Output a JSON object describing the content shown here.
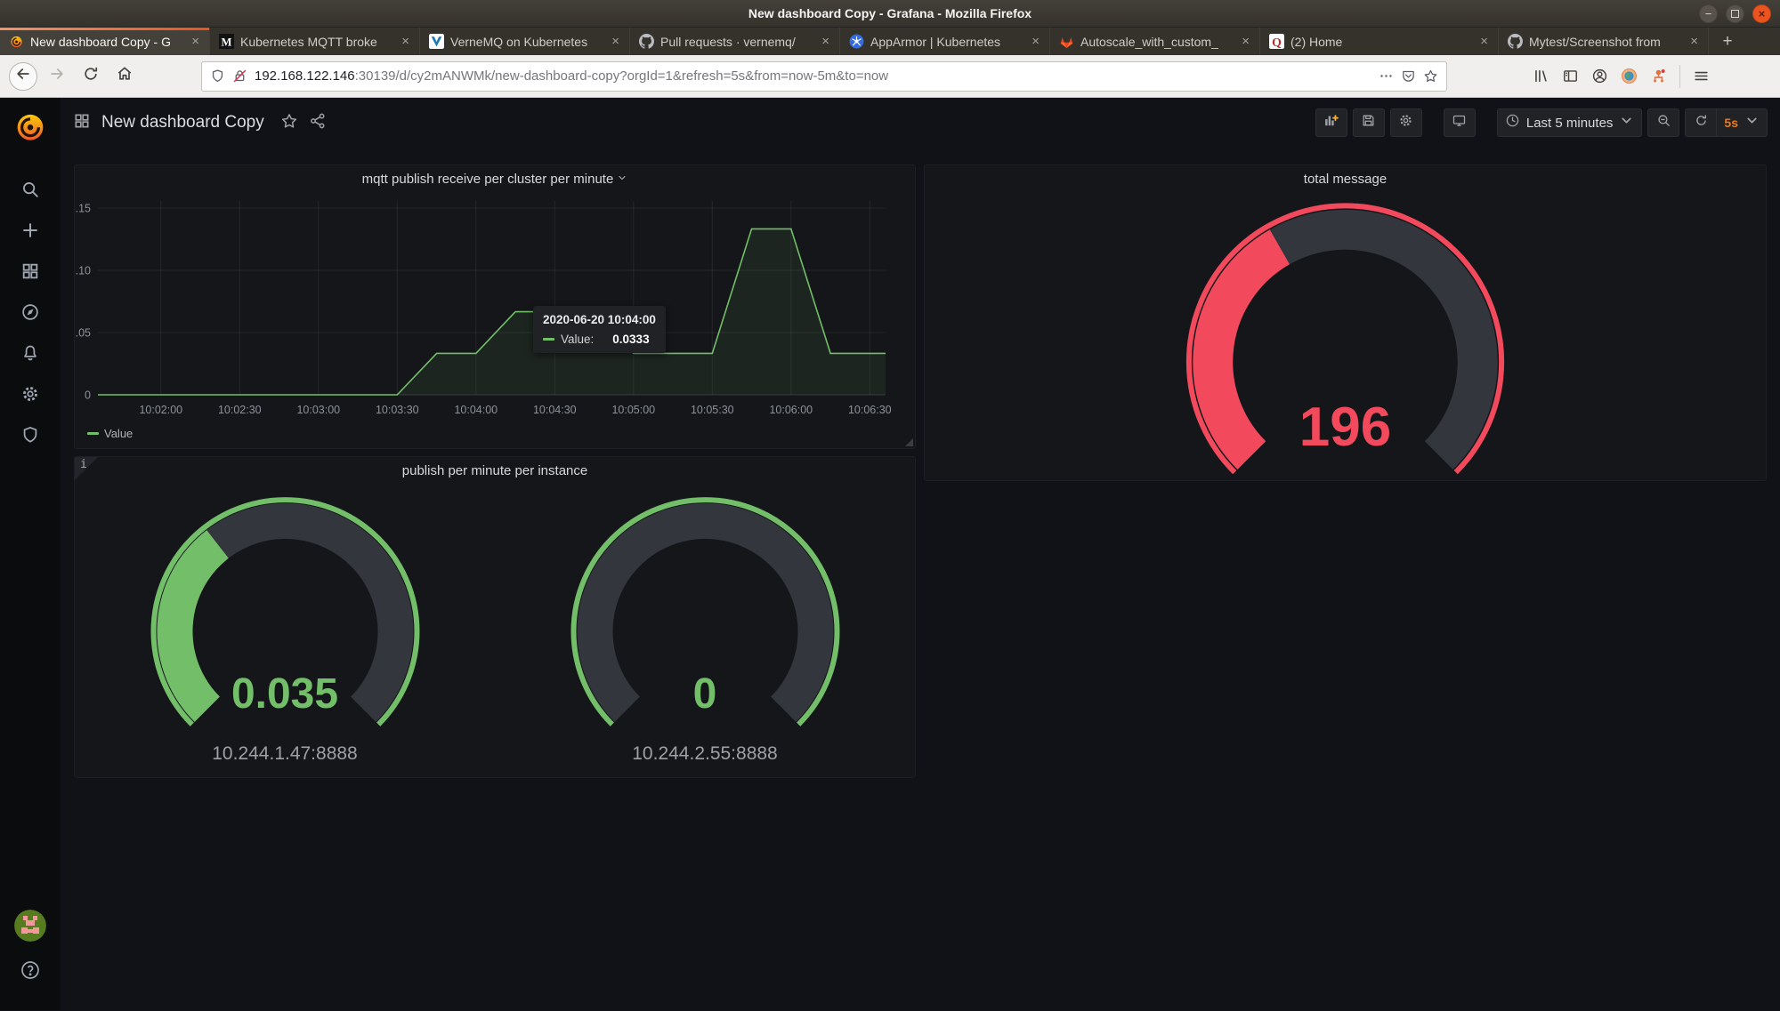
{
  "window": {
    "title": "New dashboard Copy - Grafana - Mozilla Firefox",
    "minimize_glyph": "−",
    "close_glyph": "×"
  },
  "browser": {
    "close_glyph": "×",
    "new_tab_glyph": "+",
    "tabs": [
      {
        "label": "New dashboard Copy - G",
        "icon": "grafana",
        "active": true,
        "wide": false
      },
      {
        "label": "Kubernetes MQTT broke",
        "icon": "medium",
        "active": false,
        "wide": false
      },
      {
        "label": "VerneMQ on Kubernetes",
        "icon": "vernemq",
        "active": false,
        "wide": false
      },
      {
        "label": "Pull requests · vernemq/",
        "icon": "github",
        "active": false,
        "wide": false
      },
      {
        "label": "AppArmor | Kubernetes",
        "icon": "kubernetes",
        "active": false,
        "wide": false
      },
      {
        "label": "Autoscale_with_custom_",
        "icon": "gitlab",
        "active": false,
        "wide": false
      },
      {
        "label": "(2) Home",
        "icon": "quora",
        "active": false,
        "wide": true
      },
      {
        "label": "Mytest/Screenshot from",
        "icon": "github",
        "active": false,
        "wide": false
      }
    ],
    "url_host": "192.168.122.146",
    "url_rest": ":30139/d/cy2mANWMk/new-dashboard-copy?orgId=1&refresh=5s&from=now-5m&to=now"
  },
  "grafana": {
    "help_glyph": "?",
    "sidebar_items": [
      {
        "name": "search",
        "icon": "search-icon"
      },
      {
        "name": "create",
        "icon": "plus-icon"
      },
      {
        "name": "dashboards",
        "icon": "apps-icon"
      },
      {
        "name": "explore",
        "icon": "compass-icon"
      },
      {
        "name": "alerting",
        "icon": "bell-icon"
      },
      {
        "name": "configuration",
        "icon": "gear-icon"
      },
      {
        "name": "server-admin",
        "icon": "shield-icon"
      }
    ],
    "navbar": {
      "title": "New dashboard Copy",
      "time_range_label": "Last 5 minutes",
      "refresh_label": "5s"
    }
  },
  "panels": {
    "mqtt_chart": {
      "title": "mqtt publish receive per cluster per minute",
      "legend": "Value",
      "tooltip_time": "2020-06-20 10:04:00",
      "tooltip_series": "Value:",
      "tooltip_value": "0.0333"
    },
    "total_message": {
      "title": "total message",
      "value": "196",
      "color": "#F2495C",
      "fraction": 0.39
    },
    "publish_per_instance": {
      "title": "publish per minute per instance",
      "info_glyph": "i",
      "gauges": [
        {
          "value": "0.035",
          "label": "10.244.1.47:8888",
          "fraction": 0.36,
          "color": "#73BF69"
        },
        {
          "value": "0",
          "label": "10.244.2.55:8888",
          "fraction": 0,
          "color": "#73BF69"
        }
      ]
    }
  },
  "chart_data": [
    {
      "type": "area",
      "title": "mqtt publish receive per cluster per minute",
      "xlabel": "time",
      "ylabel": "",
      "xlim": [
        "10:01:36",
        "10:06:36"
      ],
      "ylim": [
        0,
        0.1557
      ],
      "grid": true,
      "legend_position": "bottom-left",
      "x_ticks": [
        "10:02:00",
        "10:02:30",
        "10:03:00",
        "10:03:30",
        "10:04:00",
        "10:04:30",
        "10:05:00",
        "10:05:30",
        "10:06:00",
        "10:06:30"
      ],
      "y_ticks": [
        "0",
        "0.05",
        "0.10",
        "0.15"
      ],
      "series": [
        {
          "name": "Value",
          "color": "#73BF69",
          "points": [
            [
              "10:01:36",
              0
            ],
            [
              "10:03:30",
              0
            ],
            [
              "10:03:45",
              0.0333
            ],
            [
              "10:04:00",
              0.0333
            ],
            [
              "10:04:15",
              0.0667
            ],
            [
              "10:04:45",
              0.0667
            ],
            [
              "10:05:00",
              0.0333
            ],
            [
              "10:05:30",
              0.0333
            ],
            [
              "10:05:45",
              0.1333
            ],
            [
              "10:06:00",
              0.1333
            ],
            [
              "10:06:15",
              0.0333
            ],
            [
              "10:06:36",
              0.0333
            ]
          ]
        }
      ],
      "tooltip": {
        "time": "2020-06-20 10:04:00",
        "name": "Value:",
        "value": "0.0333"
      }
    },
    {
      "type": "gauge",
      "title": "total message",
      "value": 196,
      "color": "#F2495C"
    },
    {
      "type": "gauge",
      "title": "publish per minute per instance",
      "series": [
        {
          "name": "10.244.1.47:8888",
          "value": 0.035
        },
        {
          "name": "10.244.2.55:8888",
          "value": 0
        }
      ],
      "color": "#73BF69"
    }
  ]
}
